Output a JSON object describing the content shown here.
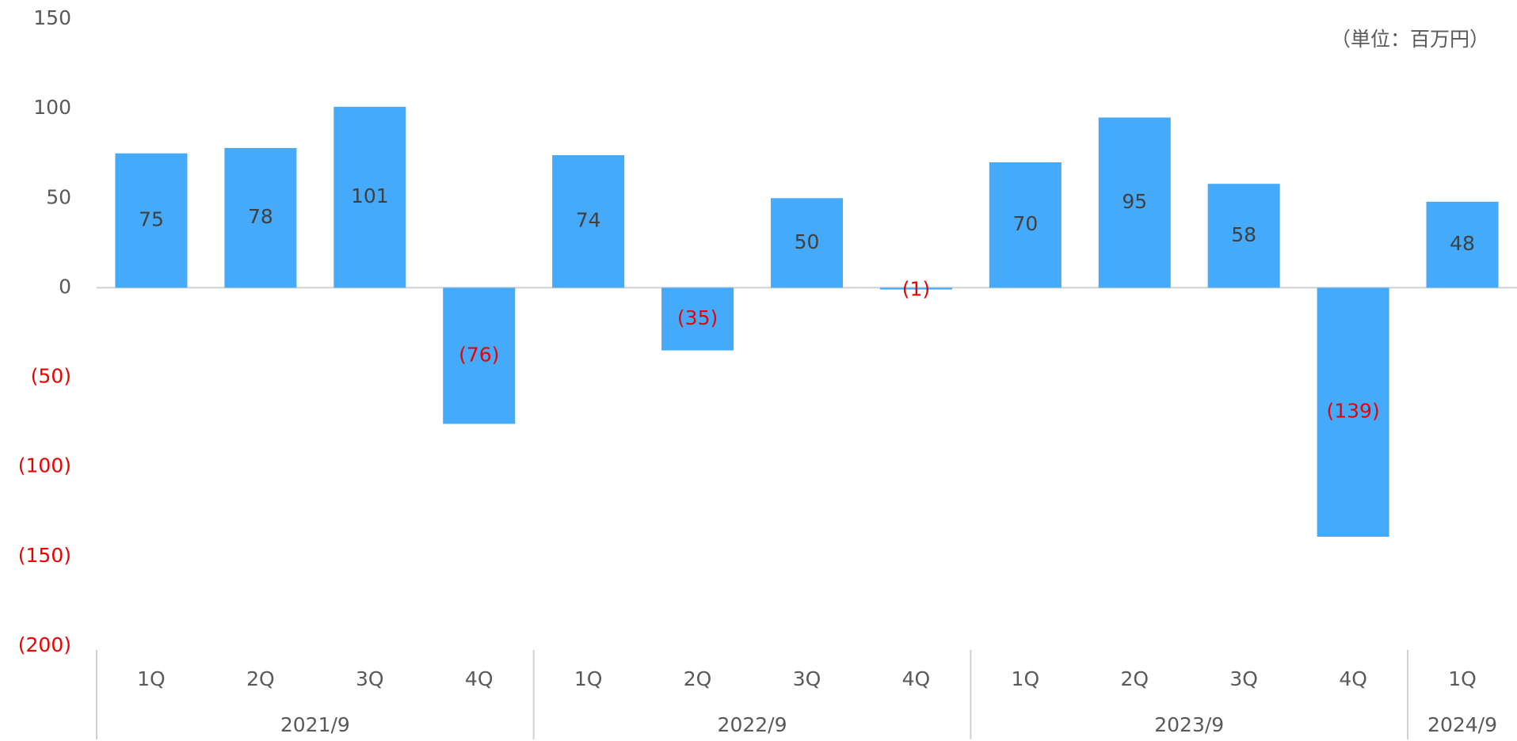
{
  "chart_data": {
    "type": "bar",
    "unit_note": "（単位：百万円）",
    "groups": [
      {
        "name": "2021/9",
        "categories": [
          "1Q",
          "2Q",
          "3Q",
          "4Q"
        ]
      },
      {
        "name": "2022/9",
        "categories": [
          "1Q",
          "2Q",
          "3Q",
          "4Q"
        ]
      },
      {
        "name": "2023/9",
        "categories": [
          "1Q",
          "2Q",
          "3Q",
          "4Q"
        ]
      },
      {
        "name": "2024/9",
        "categories": [
          "1Q"
        ]
      }
    ],
    "values": [
      75,
      78,
      101,
      -76,
      74,
      -35,
      50,
      -1,
      70,
      95,
      58,
      -139,
      48
    ],
    "value_labels": [
      "75",
      "78",
      "101",
      "(76)",
      "74",
      "(35)",
      "50",
      "(1)",
      "70",
      "95",
      "58",
      "(139)",
      "48"
    ],
    "color": "#45aafa",
    "negative_label_color": "#ee0000",
    "label_color": "#404040",
    "ylim": [
      -200,
      150
    ],
    "yticks": [
      {
        "value": -200,
        "label": "(200)"
      },
      {
        "value": -150,
        "label": "(150)"
      },
      {
        "value": -100,
        "label": "(100)"
      },
      {
        "value": -50,
        "label": "(50)"
      },
      0,
      50,
      100,
      150
    ]
  }
}
